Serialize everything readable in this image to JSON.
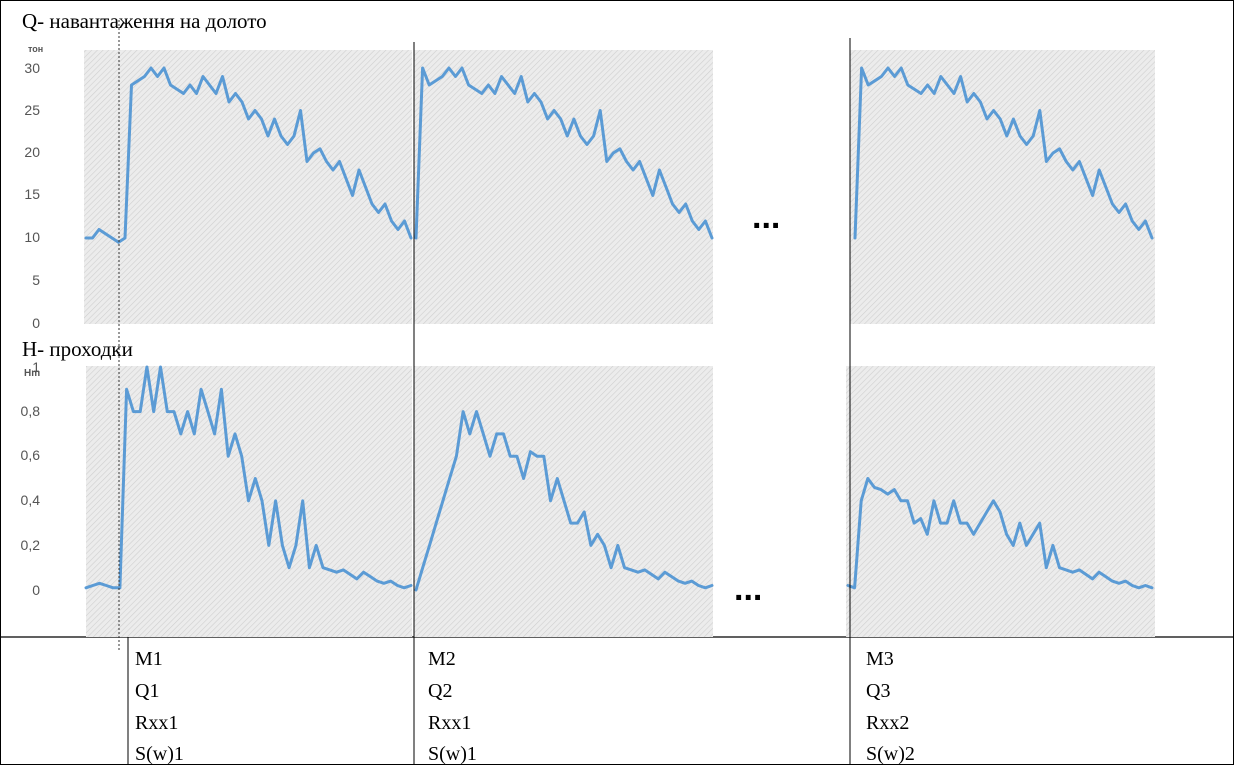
{
  "headings": {
    "top": "Q- навантаження на долото",
    "bottom": "H- проходки"
  },
  "ellipsis": "...",
  "colors": {
    "line": "#5b9bd5",
    "hatch_bg": "#ececec",
    "hatch_line": "#cfcfcf",
    "axis_text": "#555555",
    "frame": "#000000"
  },
  "chart_data": [
    {
      "type": "line",
      "title": "Q- навантаження на долото",
      "ylabel": "тон",
      "yticks": [
        "0",
        "5",
        "10",
        "15",
        "20",
        "25",
        "30"
      ],
      "ylim": [
        0,
        30
      ],
      "grid": false,
      "series": [
        {
          "values": [
            10,
            10,
            11,
            10.5,
            10,
            9.5,
            10,
            28,
            28.5,
            29,
            30,
            29,
            30,
            28,
            27.5,
            27,
            28,
            27,
            29,
            28,
            27,
            29,
            26,
            27,
            26,
            24,
            25,
            24,
            22,
            24,
            22,
            21,
            22,
            25,
            19,
            20,
            20.5,
            19,
            18,
            19,
            17,
            15,
            18,
            16,
            14,
            13,
            14,
            12,
            11,
            12,
            10
          ]
        },
        {
          "values": [
            10,
            30,
            28,
            28.5,
            29,
            30,
            29,
            30,
            28,
            27.5,
            27,
            28,
            27,
            29,
            28,
            27,
            29,
            26,
            27,
            26,
            24,
            25,
            24,
            22,
            24,
            22,
            21,
            22,
            25,
            19,
            20,
            20.5,
            19,
            18,
            19,
            17,
            15,
            18,
            16,
            14,
            13,
            14,
            12,
            11,
            12,
            10
          ]
        },
        {
          "values": [
            10,
            30,
            28,
            28.5,
            29,
            30,
            29,
            30,
            28,
            27.5,
            27,
            28,
            27,
            29,
            28,
            27,
            29,
            26,
            27,
            26,
            24,
            25,
            24,
            22,
            24,
            22,
            21,
            22,
            25,
            19,
            20,
            20.5,
            19,
            18,
            19,
            17,
            15,
            18,
            16,
            14,
            13,
            14,
            12,
            11,
            12,
            10
          ]
        }
      ]
    },
    {
      "type": "line",
      "title": "H- проходки",
      "ylabel": "Hm",
      "yticks": [
        "0",
        "0,2",
        "0,4",
        "0,6",
        "0,8",
        "1"
      ],
      "ylim": [
        -0.2,
        1
      ],
      "grid": false,
      "series": [
        {
          "values": [
            0.01,
            0.02,
            0.03,
            0.02,
            0.01,
            0.01,
            0.9,
            0.8,
            0.8,
            1,
            0.8,
            1,
            0.8,
            0.8,
            0.7,
            0.8,
            0.7,
            0.9,
            0.8,
            0.7,
            0.9,
            0.6,
            0.7,
            0.6,
            0.4,
            0.5,
            0.4,
            0.2,
            0.4,
            0.2,
            0.1,
            0.2,
            0.4,
            0.1,
            0.2,
            0.1,
            0.09,
            0.08,
            0.09,
            0.07,
            0.05,
            0.08,
            0.06,
            0.04,
            0.03,
            0.04,
            0.02,
            0.01,
            0.02
          ]
        },
        {
          "values": [
            0,
            0.1,
            0.2,
            0.3,
            0.4,
            0.5,
            0.6,
            0.8,
            0.7,
            0.8,
            0.7,
            0.6,
            0.7,
            0.7,
            0.6,
            0.6,
            0.5,
            0.62,
            0.6,
            0.6,
            0.4,
            0.5,
            0.4,
            0.3,
            0.3,
            0.35,
            0.2,
            0.25,
            0.2,
            0.1,
            0.2,
            0.1,
            0.09,
            0.08,
            0.09,
            0.07,
            0.05,
            0.08,
            0.06,
            0.04,
            0.03,
            0.04,
            0.02,
            0.01,
            0.02
          ]
        },
        {
          "values": [
            0.02,
            0.01,
            0.4,
            0.5,
            0.46,
            0.45,
            0.43,
            0.45,
            0.4,
            0.4,
            0.3,
            0.32,
            0.25,
            0.4,
            0.3,
            0.3,
            0.4,
            0.3,
            0.3,
            0.25,
            0.3,
            0.35,
            0.4,
            0.35,
            0.25,
            0.2,
            0.3,
            0.2,
            0.25,
            0.3,
            0.1,
            0.2,
            0.1,
            0.09,
            0.08,
            0.09,
            0.07,
            0.05,
            0.08,
            0.06,
            0.04,
            0.03,
            0.04,
            0.02,
            0.01,
            0.02,
            0.01
          ]
        }
      ]
    }
  ],
  "segments": [
    {
      "lines": [
        "M1",
        "Q1",
        "Rxx1",
        "S(w)1"
      ]
    },
    {
      "lines": [
        "M2",
        "Q2",
        "Rxx1",
        "S(w)1"
      ]
    },
    {
      "lines": [
        "M3",
        "Q3",
        "Rxx2",
        "S(w)2"
      ]
    }
  ]
}
